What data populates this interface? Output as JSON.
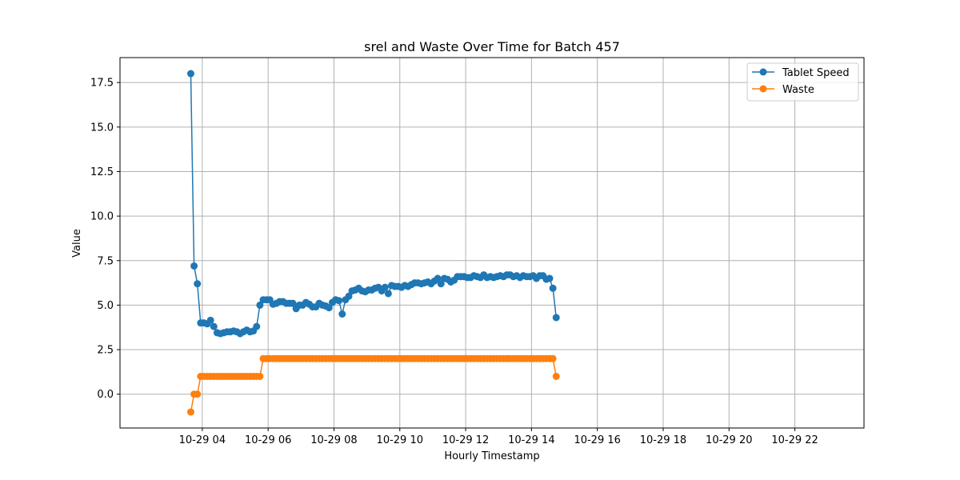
{
  "chart_data": {
    "type": "line",
    "title": "srel and Waste Over Time for Batch 457",
    "xlabel": "Hourly Timestamp",
    "ylabel": "Value",
    "x_start_hour": 3.65,
    "x_step_hours": 0.1,
    "xlim_hours": [
      1.5,
      24.1
    ],
    "ylim": [
      -1.9,
      18.9
    ],
    "x_ticks": [
      {
        "hour": 4,
        "label": "10-29 04"
      },
      {
        "hour": 6,
        "label": "10-29 06"
      },
      {
        "hour": 8,
        "label": "10-29 08"
      },
      {
        "hour": 10,
        "label": "10-29 10"
      },
      {
        "hour": 12,
        "label": "10-29 12"
      },
      {
        "hour": 14,
        "label": "10-29 14"
      },
      {
        "hour": 16,
        "label": "10-29 16"
      },
      {
        "hour": 18,
        "label": "10-29 18"
      },
      {
        "hour": 20,
        "label": "10-29 20"
      },
      {
        "hour": 22,
        "label": "10-29 22"
      }
    ],
    "y_ticks": [
      {
        "value": 0.0,
        "label": "0.0"
      },
      {
        "value": 2.5,
        "label": "2.5"
      },
      {
        "value": 5.0,
        "label": "5.0"
      },
      {
        "value": 7.5,
        "label": "7.5"
      },
      {
        "value": 10.0,
        "label": "10.0"
      },
      {
        "value": 12.5,
        "label": "12.5"
      },
      {
        "value": 15.0,
        "label": "15.0"
      },
      {
        "value": 17.5,
        "label": "17.5"
      }
    ],
    "grid": true,
    "legend_position": "top-right",
    "series": [
      {
        "name": "Tablet Speed",
        "color": "#1f77b4",
        "marker": "circle",
        "values": [
          18.0,
          7.2,
          6.2,
          4.0,
          4.0,
          3.95,
          4.15,
          3.8,
          3.45,
          3.4,
          3.45,
          3.5,
          3.5,
          3.55,
          3.5,
          3.4,
          3.5,
          3.6,
          3.5,
          3.55,
          3.8,
          5.0,
          5.3,
          5.3,
          5.3,
          5.05,
          5.1,
          5.2,
          5.2,
          5.1,
          5.1,
          5.1,
          4.8,
          5.0,
          5.0,
          5.15,
          5.05,
          4.9,
          4.9,
          5.1,
          5.0,
          4.95,
          4.85,
          5.15,
          5.3,
          5.25,
          4.5,
          5.3,
          5.5,
          5.8,
          5.85,
          5.95,
          5.8,
          5.75,
          5.85,
          5.85,
          5.95,
          6.0,
          5.8,
          6.0,
          5.65,
          6.1,
          6.05,
          6.05,
          6.0,
          6.1,
          6.05,
          6.15,
          6.25,
          6.25,
          6.2,
          6.25,
          6.3,
          6.2,
          6.35,
          6.5,
          6.2,
          6.5,
          6.45,
          6.3,
          6.4,
          6.6,
          6.6,
          6.6,
          6.55,
          6.55,
          6.65,
          6.6,
          6.55,
          6.7,
          6.55,
          6.6,
          6.55,
          6.6,
          6.65,
          6.6,
          6.7,
          6.7,
          6.6,
          6.65,
          6.55,
          6.65,
          6.6,
          6.6,
          6.65,
          6.5,
          6.65,
          6.65,
          6.45,
          6.5,
          5.95,
          4.3
        ]
      },
      {
        "name": "Waste",
        "color": "#ff7f0e",
        "marker": "circle",
        "values": [
          -1.0,
          0.0,
          0.0,
          1.0,
          1.0,
          1.0,
          1.0,
          1.0,
          1.0,
          1.0,
          1.0,
          1.0,
          1.0,
          1.0,
          1.0,
          1.0,
          1.0,
          1.0,
          1.0,
          1.0,
          1.0,
          1.0,
          2.0,
          2.0,
          2.0,
          2.0,
          2.0,
          2.0,
          2.0,
          2.0,
          2.0,
          2.0,
          2.0,
          2.0,
          2.0,
          2.0,
          2.0,
          2.0,
          2.0,
          2.0,
          2.0,
          2.0,
          2.0,
          2.0,
          2.0,
          2.0,
          2.0,
          2.0,
          2.0,
          2.0,
          2.0,
          2.0,
          2.0,
          2.0,
          2.0,
          2.0,
          2.0,
          2.0,
          2.0,
          2.0,
          2.0,
          2.0,
          2.0,
          2.0,
          2.0,
          2.0,
          2.0,
          2.0,
          2.0,
          2.0,
          2.0,
          2.0,
          2.0,
          2.0,
          2.0,
          2.0,
          2.0,
          2.0,
          2.0,
          2.0,
          2.0,
          2.0,
          2.0,
          2.0,
          2.0,
          2.0,
          2.0,
          2.0,
          2.0,
          2.0,
          2.0,
          2.0,
          2.0,
          2.0,
          2.0,
          2.0,
          2.0,
          2.0,
          2.0,
          2.0,
          2.0,
          2.0,
          2.0,
          2.0,
          2.0,
          2.0,
          2.0,
          2.0,
          2.0,
          2.0,
          2.0,
          1.0
        ]
      }
    ]
  }
}
